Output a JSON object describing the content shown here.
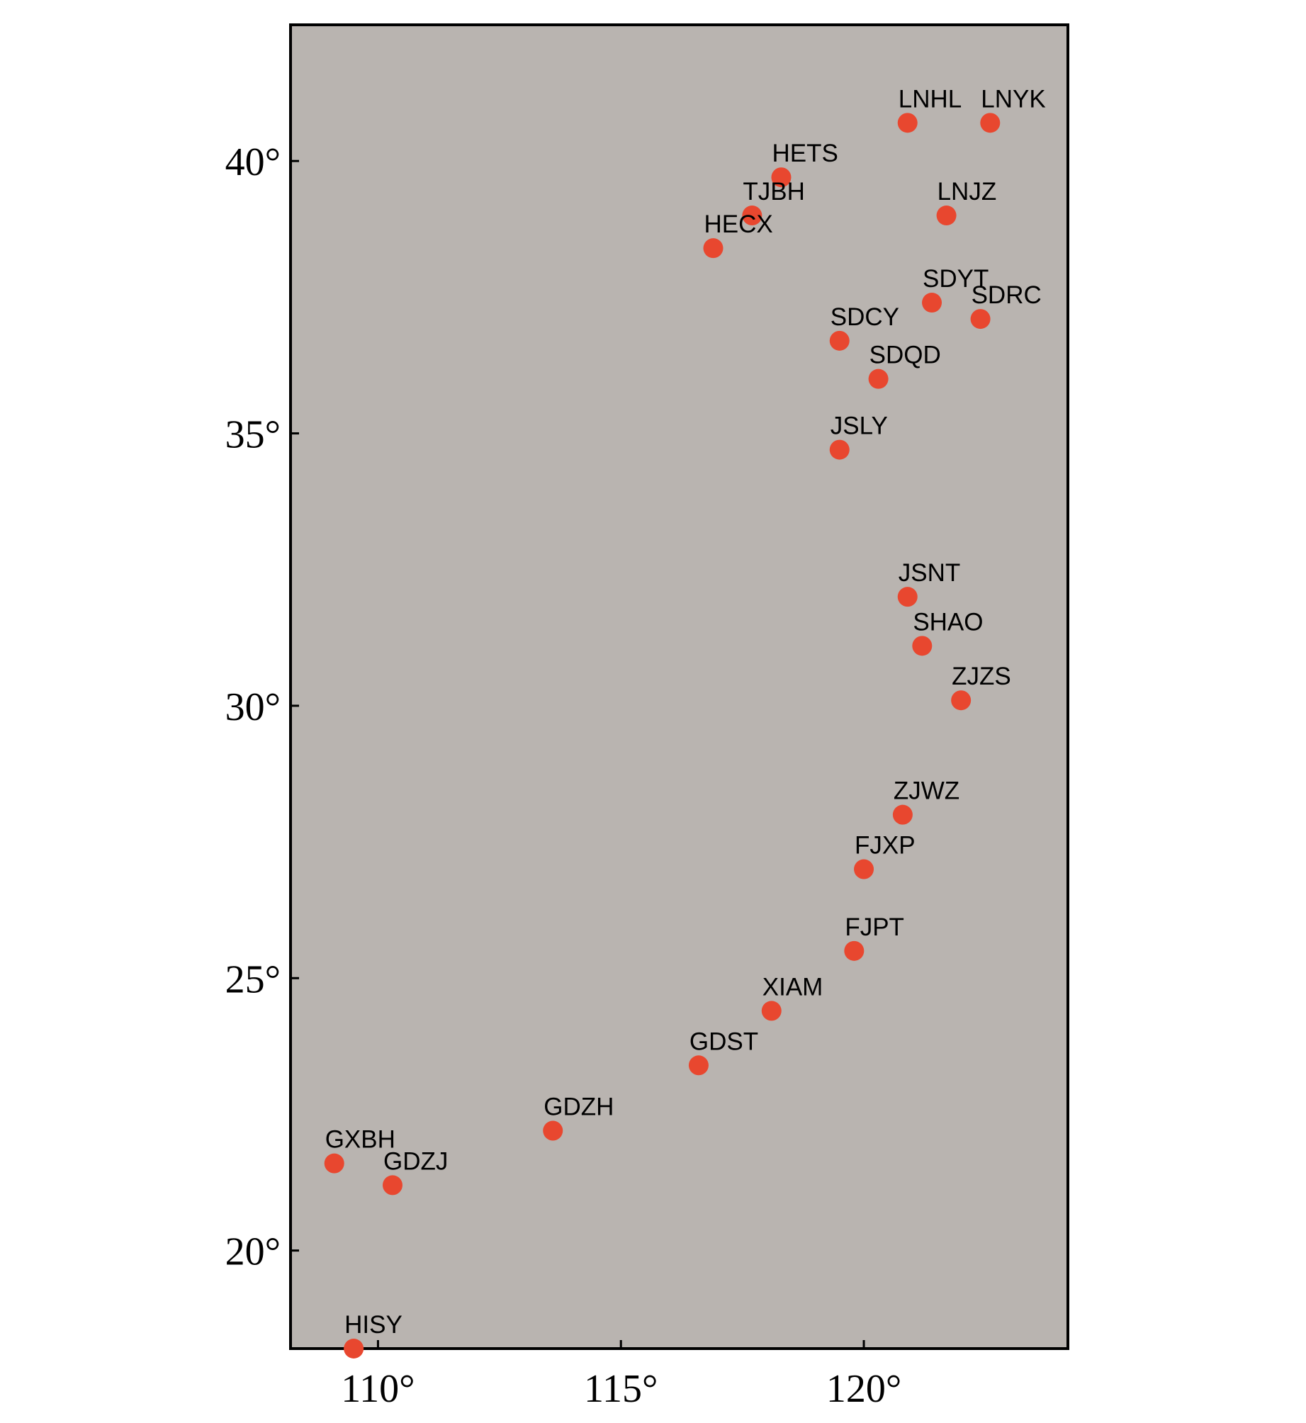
{
  "chart_data": {
    "type": "scatter",
    "title": "",
    "xlabel": "",
    "ylabel": "",
    "xlim": [
      108.2,
      124.2
    ],
    "ylim": [
      18.2,
      42.5
    ],
    "grid": false,
    "colors": {
      "background": "#b9b4b0",
      "point": "#e8472f",
      "frame": "#000000"
    },
    "x_ticks": [
      {
        "value": 110,
        "label": "110°"
      },
      {
        "value": 115,
        "label": "115°"
      },
      {
        "value": 120,
        "label": "120°"
      }
    ],
    "y_ticks": [
      {
        "value": 20,
        "label": "20°"
      },
      {
        "value": 25,
        "label": "25°"
      },
      {
        "value": 30,
        "label": "30°"
      },
      {
        "value": 35,
        "label": "35°"
      },
      {
        "value": 40,
        "label": "40°"
      }
    ],
    "points": [
      {
        "name": "LNHL",
        "x": 120.9,
        "y": 40.7
      },
      {
        "name": "LNYK",
        "x": 122.6,
        "y": 40.7
      },
      {
        "name": "HETS",
        "x": 118.3,
        "y": 39.7
      },
      {
        "name": "TJBH",
        "x": 117.7,
        "y": 39.0
      },
      {
        "name": "LNJZ",
        "x": 121.7,
        "y": 39.0
      },
      {
        "name": "HECX",
        "x": 116.9,
        "y": 38.4
      },
      {
        "name": "SDYT",
        "x": 121.4,
        "y": 37.4
      },
      {
        "name": "SDRC",
        "x": 122.4,
        "y": 37.1
      },
      {
        "name": "SDCY",
        "x": 119.5,
        "y": 36.7
      },
      {
        "name": "SDQD",
        "x": 120.3,
        "y": 36.0
      },
      {
        "name": "JSLY",
        "x": 119.5,
        "y": 34.7
      },
      {
        "name": "JSNT",
        "x": 120.9,
        "y": 32.0
      },
      {
        "name": "SHAO",
        "x": 121.2,
        "y": 31.1
      },
      {
        "name": "ZJZS",
        "x": 122.0,
        "y": 30.1
      },
      {
        "name": "ZJWZ",
        "x": 120.8,
        "y": 28.0
      },
      {
        "name": "FJXP",
        "x": 120.0,
        "y": 27.0
      },
      {
        "name": "FJPT",
        "x": 119.8,
        "y": 25.5
      },
      {
        "name": "XIAM",
        "x": 118.1,
        "y": 24.4
      },
      {
        "name": "GDST",
        "x": 116.6,
        "y": 23.4
      },
      {
        "name": "GDZH",
        "x": 113.6,
        "y": 22.2
      },
      {
        "name": "GXBH",
        "x": 109.1,
        "y": 21.6
      },
      {
        "name": "GDZJ",
        "x": 110.3,
        "y": 21.2
      },
      {
        "name": "HISY",
        "x": 109.5,
        "y": 18.2
      }
    ]
  }
}
